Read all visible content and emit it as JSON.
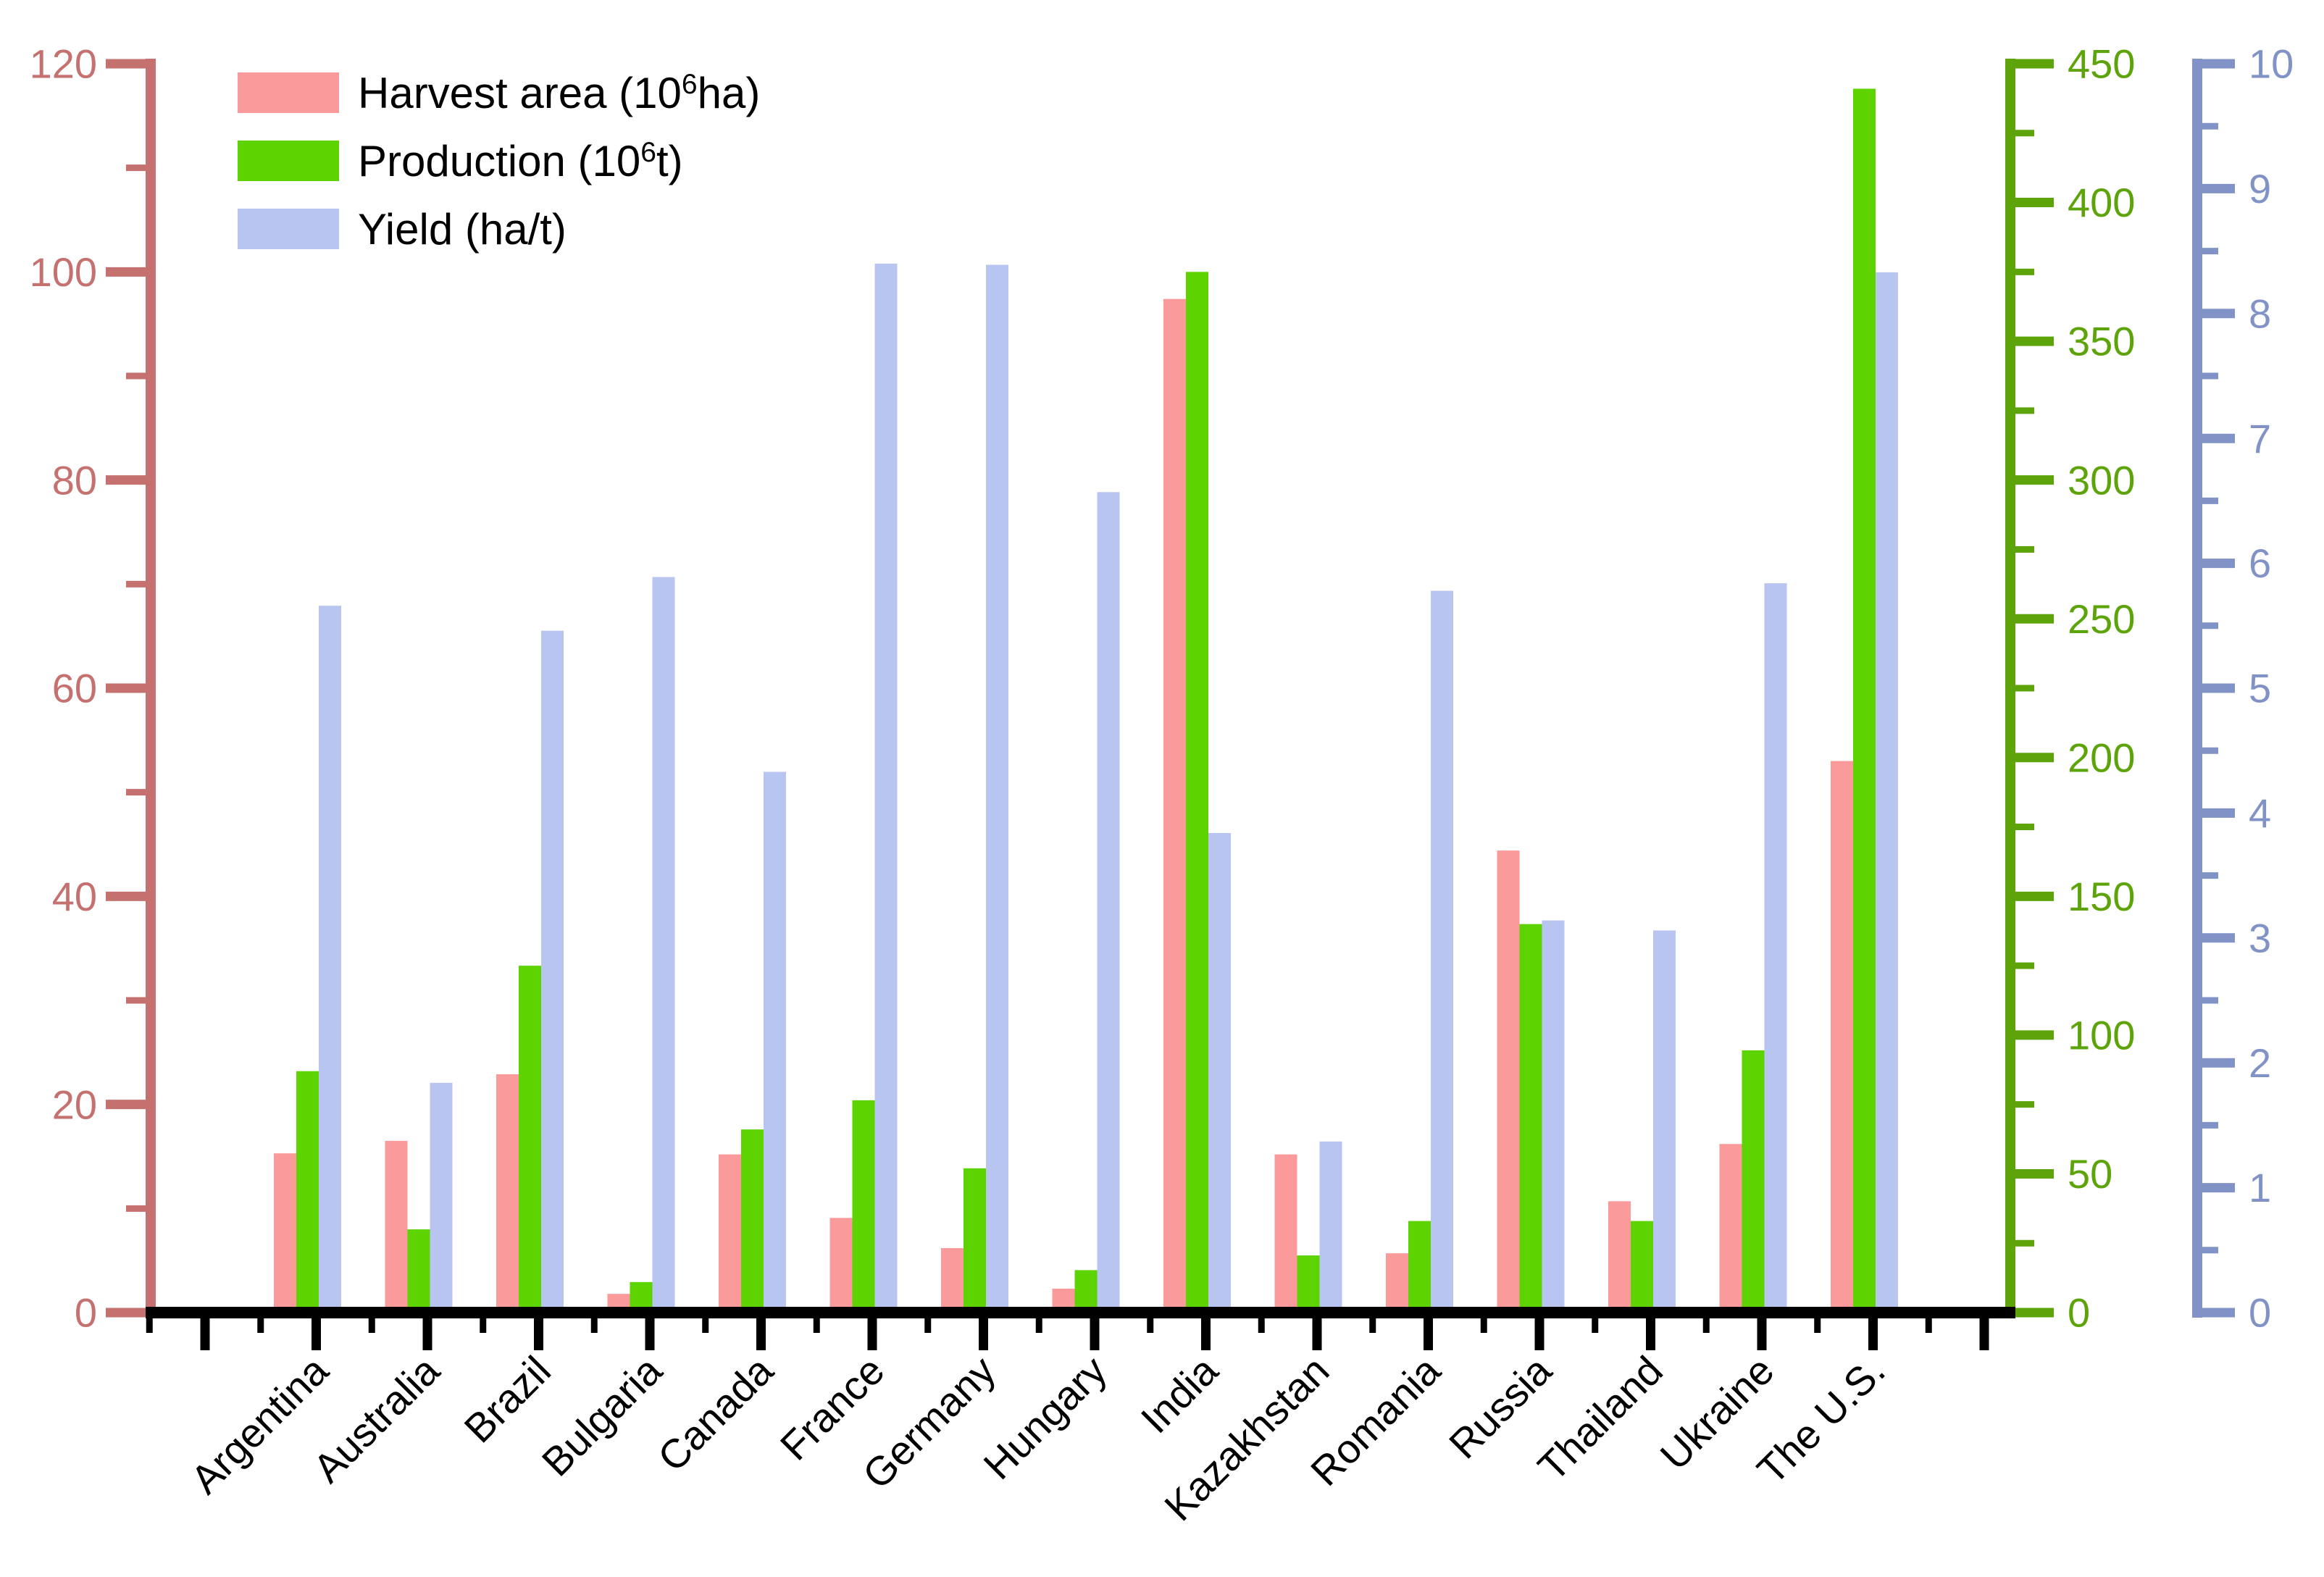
{
  "chart_data": {
    "type": "bar",
    "title": "",
    "grid": false,
    "legend_position": "top-left",
    "categories": [
      "Argentina",
      "Australia",
      "Brazil",
      "Bulgaria",
      "Canada",
      "France",
      "Germany",
      "Hungary",
      "India",
      "Kazakhstan",
      "Romania",
      "Russia",
      "Thailand",
      "Ukraine",
      "The U.S."
    ],
    "series": [
      {
        "name": "Harvest area (10⁶ha)",
        "axis": "left",
        "color": "#FA9A9A",
        "values": [
          15.3,
          16.5,
          22.9,
          1.8,
          15.2,
          9.1,
          6.2,
          2.3,
          97.4,
          15.2,
          5.7,
          44.4,
          10.7,
          16.2,
          53.0
        ]
      },
      {
        "name": "Production (10⁶t)",
        "axis": "right_green",
        "color": "#5DD302",
        "values": [
          87,
          30,
          125,
          11,
          66,
          76.5,
          52,
          15.3,
          375,
          20.6,
          33,
          140,
          33,
          94.5,
          441
        ]
      },
      {
        "name": "Yield (ha/t)",
        "axis": "far_right_blue",
        "color": "#B9C5F1",
        "values": [
          5.66,
          1.84,
          5.46,
          5.89,
          4.33,
          8.4,
          8.39,
          6.57,
          3.84,
          1.37,
          5.78,
          3.14,
          3.06,
          5.84,
          8.33
        ]
      }
    ],
    "axes": {
      "left": {
        "min": 0,
        "max": 120,
        "major_step": 20,
        "minor_step": 10,
        "color": "#C4716F",
        "tick_labels": [
          "0",
          "20",
          "40",
          "60",
          "80",
          "100",
          "120"
        ]
      },
      "right_green": {
        "min": 0,
        "max": 450,
        "major_step": 50,
        "minor_step": 25,
        "color": "#5CA40A",
        "tick_labels": [
          "0",
          "50",
          "100",
          "150",
          "200",
          "250",
          "300",
          "350",
          "400",
          "450"
        ]
      },
      "far_right_blue": {
        "min": 0,
        "max": 10,
        "major_step": 1,
        "minor_step": 0.5,
        "color": "#8092C6",
        "tick_labels": [
          "0",
          "1",
          "2",
          "3",
          "4",
          "5",
          "6",
          "7",
          "8",
          "9",
          "10"
        ]
      },
      "bottom": {
        "color": "#000000",
        "label_rotation_deg": -45
      }
    },
    "legend": {
      "items": [
        {
          "label": "Harvest area (10⁶ha)",
          "color": "#FA9A9A"
        },
        {
          "label": "Production (10⁶t)",
          "color": "#5DD302"
        },
        {
          "label": "Yield (ha/t)",
          "color": "#B9C5F1"
        }
      ]
    }
  }
}
